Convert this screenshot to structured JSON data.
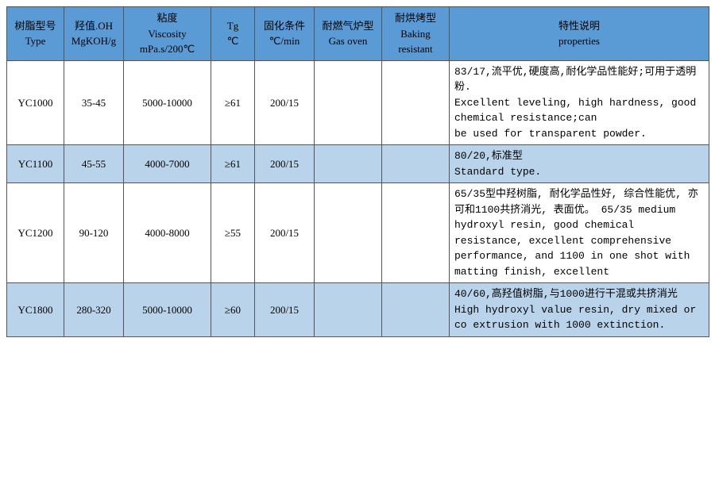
{
  "table": {
    "header_bg": "#5b9bd5",
    "alt_row_bg": "#b9d4ea",
    "border_color": "#555555",
    "font_size": 13,
    "columns": [
      {
        "zh": "树脂型号",
        "en": "Type"
      },
      {
        "zh": "羟值.OH",
        "en": "MgKOH/g"
      },
      {
        "zh": "粘度",
        "en": "Viscosity",
        "en2": "mPa.s/200℃"
      },
      {
        "zh": "Tg",
        "en": "℃"
      },
      {
        "zh": "固化条件",
        "en": "℃/min"
      },
      {
        "zh": "耐燃气炉型",
        "en": "Gas oven"
      },
      {
        "zh": "耐烘烤型",
        "en": "Baking",
        "en2": "resistant"
      },
      {
        "zh": "特性说明",
        "en": "properties"
      }
    ],
    "rows": [
      {
        "type": "YC1000",
        "oh": "35-45",
        "visc": "5000-10000",
        "tg": "≥61",
        "cure": "200/15",
        "gas": "",
        "bake": "",
        "props": "83/17,流平优,硬度高,耐化学品性能好;可用于透明粉.\nExcellent leveling, high hardness, good chemical resistance;can\nbe used for transparent powder."
      },
      {
        "type": "YC1100",
        "oh": "45-55",
        "visc": "4000-7000",
        "tg": "≥61",
        "cure": "200/15",
        "gas": "",
        "bake": "",
        "props": "80/20,标准型\nStandard type."
      },
      {
        "type": "YC1200",
        "oh": "90-120",
        "visc": "4000-8000",
        "tg": "≥55",
        "cure": "200/15",
        "gas": "",
        "bake": "",
        "props": "65/35型中羟树脂, 耐化学品性好, 综合性能优, 亦可和1100共挤消光, 表面优。 65/35 medium hydroxyl resin, good chemical resistance, excellent comprehensive performance, and 1100 in one shot with matting finish, excellent"
      },
      {
        "type": "YC1800",
        "oh": "280-320",
        "visc": "5000-10000",
        "tg": "≥60",
        "cure": "200/15",
        "gas": "",
        "bake": "",
        "props": "40/60,高羟值树脂,与1000进行干混或共挤消光\nHigh hydroxyl value resin, dry mixed or co extrusion with 1000 extinction."
      }
    ]
  }
}
